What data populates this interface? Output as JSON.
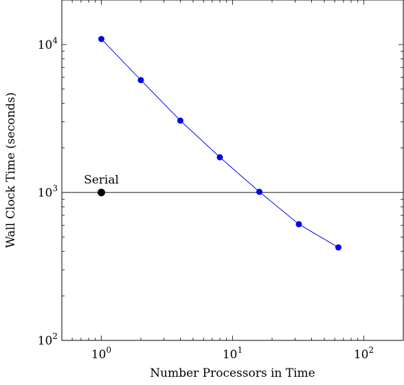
{
  "chart_data": {
    "type": "line",
    "title": "",
    "xlabel": "Number Processors in Time",
    "ylabel": "Wall Clock Time (seconds)",
    "x_scale": "log",
    "y_scale": "log",
    "xlim": [
      0.5,
      200
    ],
    "ylim": [
      100,
      20000
    ],
    "x_tick_labels": [
      {
        "value": 1,
        "base": "10",
        "exp": "0"
      },
      {
        "value": 10,
        "base": "10",
        "exp": "1"
      },
      {
        "value": 100,
        "base": "10",
        "exp": "2"
      }
    ],
    "y_tick_labels": [
      {
        "value": 100,
        "base": "10",
        "exp": "2"
      },
      {
        "value": 1000,
        "base": "10",
        "exp": "3"
      },
      {
        "value": 10000,
        "base": "10",
        "exp": "4"
      }
    ],
    "grid": false,
    "series": [
      {
        "color": "#0000ee",
        "marker": "circle",
        "x": [
          1,
          2,
          4,
          8,
          16,
          32,
          64
        ],
        "y": [
          10900,
          5750,
          3060,
          1730,
          1010,
          610,
          425
        ]
      }
    ],
    "reference_line": {
      "y": 1000,
      "color": "#555555"
    },
    "serial_point": {
      "x": 1,
      "y": 1000,
      "label": "Serial",
      "color": "#000000"
    }
  }
}
